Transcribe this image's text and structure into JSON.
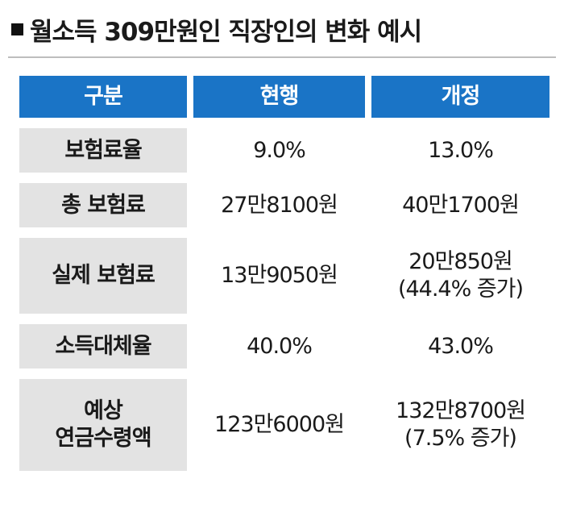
{
  "title": "월소득 309만원인 직장인의 변화 예시",
  "headers": [
    "구분",
    "현행",
    "개정"
  ],
  "rows": [
    {
      "label": [
        "보험료율"
      ],
      "current": [
        "9.0%"
      ],
      "revised": [
        "13.0%"
      ]
    },
    {
      "label": [
        "총 보험료"
      ],
      "current": [
        "27만8100원"
      ],
      "revised": [
        "40만1700원"
      ]
    },
    {
      "label": [
        "실제 보험료"
      ],
      "current": [
        "13만9050원"
      ],
      "revised": [
        "20만850원",
        "(44.4% 증가)"
      ]
    },
    {
      "label": [
        "소득대체율"
      ],
      "current": [
        "40.0%"
      ],
      "revised": [
        "43.0%"
      ]
    },
    {
      "label": [
        "예상",
        "연금수령액"
      ],
      "current": [
        "123만6000원"
      ],
      "revised": [
        "132만8700원",
        "(7.5% 증가)"
      ]
    }
  ],
  "colors": {
    "header_bg": "#1a74c6",
    "label_bg": "#e3e3e3"
  }
}
